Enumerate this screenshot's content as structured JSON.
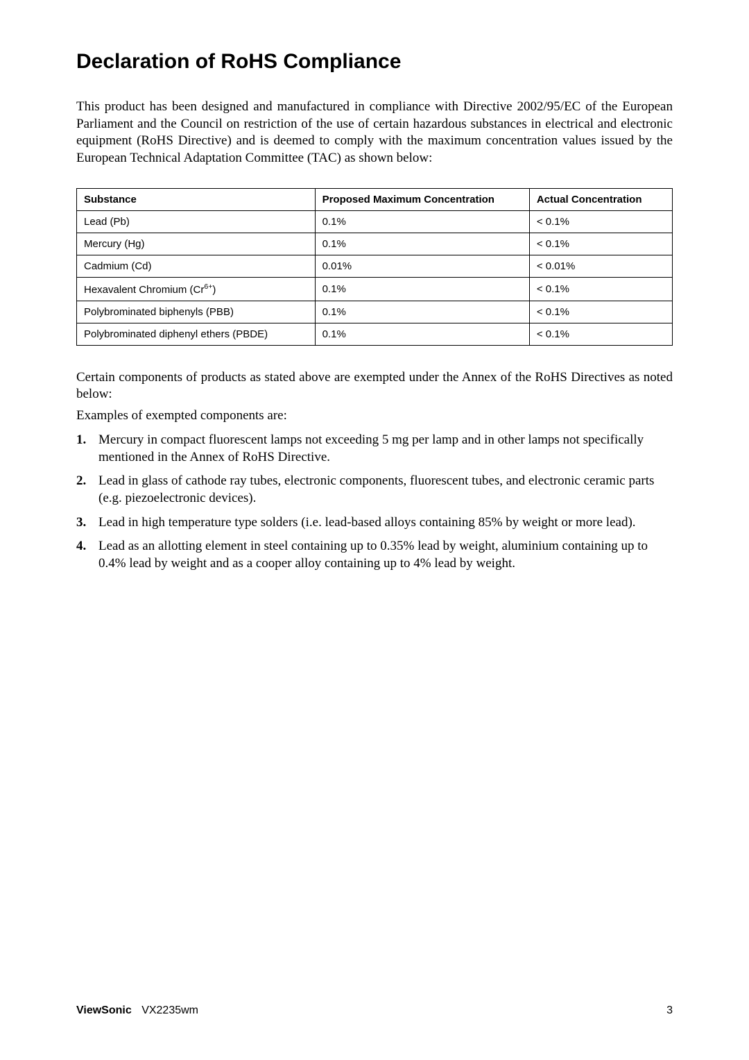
{
  "title": "Declaration of RoHS Compliance",
  "intro": "This product has been designed and manufactured in compliance with Directive 2002/95/EC of the European Parliament and the Council on restriction of the use of certain hazardous substances in electrical and electronic equipment (RoHS Directive) and is deemed to comply with the maximum concentration values issued by the European Technical Adaptation Committee (TAC) as shown below:",
  "table": {
    "headers": {
      "substance": "Substance",
      "proposed": "Proposed Maximum Concentration",
      "actual": "Actual Concentration"
    },
    "rows": [
      {
        "substance": "Lead (Pb)",
        "proposed": "0.1%",
        "actual": "< 0.1%"
      },
      {
        "substance": "Mercury (Hg)",
        "proposed": "0.1%",
        "actual": "< 0.1%"
      },
      {
        "substance": "Cadmium (Cd)",
        "proposed": "0.01%",
        "actual": "< 0.01%"
      },
      {
        "substance_prefix": "Hexavalent Chromium (Cr",
        "substance_super": "6+",
        "substance_suffix": ")",
        "proposed": "0.1%",
        "actual": "< 0.1%"
      },
      {
        "substance": "Polybrominated biphenyls (PBB)",
        "proposed": "0.1%",
        "actual": "< 0.1%"
      },
      {
        "substance": "Polybrominated diphenyl ethers (PBDE)",
        "proposed": "0.1%",
        "actual": "< 0.1%"
      }
    ]
  },
  "secondary": "Certain components of products as stated above are exempted under the Annex of the RoHS Directives as noted below:",
  "examples_label": "Examples of exempted components are:",
  "exemptions": [
    {
      "num": "1.",
      "text": "Mercury in compact fluorescent lamps not exceeding 5 mg per lamp and in other lamps not specifically mentioned in the Annex of RoHS Directive."
    },
    {
      "num": "2.",
      "text": "Lead in glass of cathode ray tubes, electronic components, fluorescent tubes, and electronic ceramic parts (e.g. piezoelectronic devices)."
    },
    {
      "num": "3.",
      "text": "Lead in high temperature type solders (i.e. lead-based alloys containing 85% by weight or more lead)."
    },
    {
      "num": "4.",
      "text": "Lead as an allotting element in steel containing up to 0.35% lead by weight, aluminium containing up to 0.4% lead by weight and as a cooper alloy containing up to 4% lead by weight."
    }
  ],
  "footer": {
    "brand": "ViewSonic",
    "model": "VX2235wm",
    "page": "3"
  }
}
